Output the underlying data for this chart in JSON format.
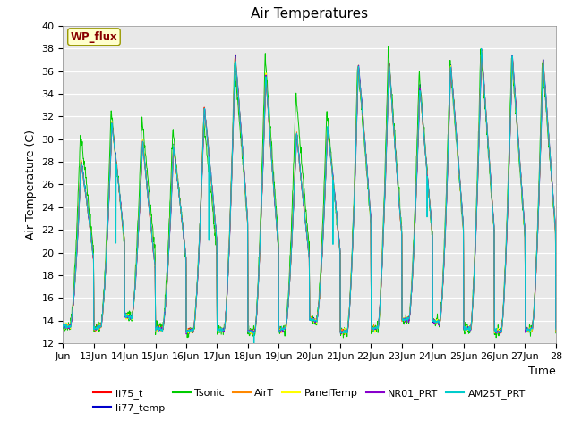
{
  "title": "Air Temperatures",
  "ylabel": "Air Temperature (C)",
  "xlabel": "Time",
  "wp_flux_label": "WP_flux",
  "ylim": [
    12,
    40
  ],
  "yticks": [
    12,
    14,
    16,
    18,
    20,
    22,
    24,
    26,
    28,
    30,
    32,
    34,
    36,
    38,
    40
  ],
  "xtick_labels": [
    "Jun",
    "13Jun",
    "14Jun",
    "15Jun",
    "16Jun",
    "17Jun",
    "18Jun",
    "19Jun",
    "20Jun",
    "21Jun",
    "22Jun",
    "23Jun",
    "24Jun",
    "25Jun",
    "26Jun",
    "27Jun",
    "28"
  ],
  "series_colors": {
    "li75_t": "#ff0000",
    "li77_temp": "#0000cc",
    "Tsonic": "#00cc00",
    "AirT": "#ff8800",
    "PanelTemp": "#ffff00",
    "NR01_PRT": "#8800cc",
    "AM25T_PRT": "#00cccc"
  },
  "background_color": "#e8e8e8",
  "title_fontsize": 11,
  "axis_fontsize": 9,
  "tick_fontsize": 8,
  "day_mins_base": [
    13.5,
    13.2,
    14.5,
    13.3,
    13.1,
    13.2,
    13.0,
    13.1,
    14.2,
    13.0,
    13.2,
    14.1,
    14.0,
    13.3,
    13.0,
    13.2
  ],
  "day_maxs_base": [
    25.5,
    30.0,
    32.5,
    28.0,
    30.5,
    34.5,
    39.5,
    33.0,
    29.0,
    32.5,
    39.5,
    35.0,
    34.5,
    38.0,
    38.0,
    37.0
  ],
  "tsonic_day_maxs": [
    28.0,
    32.5,
    32.5,
    31.5,
    30.5,
    32.5,
    39.5,
    36.0,
    32.5,
    32.5,
    39.5,
    37.0,
    35.0,
    38.0,
    38.0,
    37.0
  ]
}
